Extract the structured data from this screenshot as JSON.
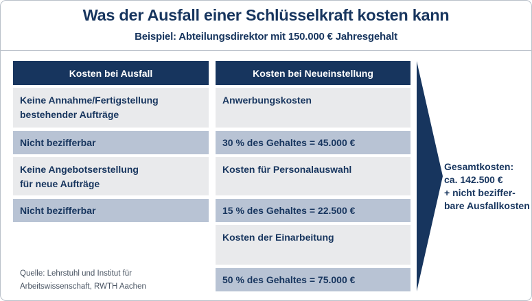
{
  "header": {
    "title": "Was der Ausfall einer Schlüsselkraft kosten kann",
    "subtitle": "Beispiel: Abteilungsdirektor mit 150.000 € Jahresgehalt"
  },
  "left": {
    "heading": "Kosten bei Ausfall",
    "rows": [
      {
        "line1": "Keine Annahme/Fertigstellung",
        "line2": "bestehender Aufträge"
      },
      {
        "line1": "Nicht bezifferbar"
      },
      {
        "line1": "Keine Angebotserstellung",
        "line2": "für neue Aufträge"
      },
      {
        "line1": "Nicht bezifferbar"
      }
    ]
  },
  "right": {
    "heading": "Kosten bei Neueinstellung",
    "rows": [
      {
        "label": "Anwerbungskosten"
      },
      {
        "label": "30 % des Gehaltes = 45.000 €"
      },
      {
        "label": "Kosten für Personalauswahl"
      },
      {
        "label": "15 % des Gehaltes = 22.500 €"
      },
      {
        "label": "Kosten der Einarbeitung"
      },
      {
        "label": "50 % des Gehaltes = 75.000 €"
      }
    ]
  },
  "total": {
    "line1": "Gesamtkosten:",
    "line2": "ca. 142.500 €",
    "line3": "+ nicht beziffer-",
    "line4": "bare Ausfallkosten"
  },
  "source": {
    "line1": "Quelle: Lehrstuhl und Institut für",
    "line2": "Arbeitswissenschaft, RWTH Aachen"
  },
  "colors": {
    "navy": "#17355e",
    "light_gray": "#e9eaec",
    "steel_blue": "#b8c3d4"
  }
}
